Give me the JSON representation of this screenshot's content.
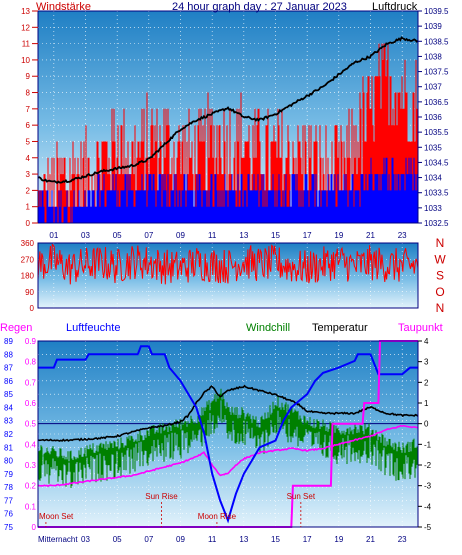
{
  "colors": {
    "wind": "#ff0000",
    "gust": "#0000ff",
    "pressure": "#000000",
    "direction": "#ff0000",
    "humidity": "#0000ff",
    "windchill": "#008000",
    "temperature": "#000000",
    "dewpoint": "#ff00ff",
    "rain": "#ff00ff",
    "annotation": "#cc0000",
    "left_axis": "#cc0000",
    "right_axis": "#000080"
  },
  "chart_data": [
    {
      "type": "line",
      "title": "24 hour graph day : 27 Januar 2023",
      "left_label": "Windstärke",
      "right_label": "Luftdruck",
      "x_ticks": [
        "01",
        "03",
        "05",
        "07",
        "09",
        "11",
        "13",
        "15",
        "17",
        "19",
        "21",
        "23"
      ],
      "y_left_ticks": [
        "0",
        "1",
        "2",
        "3",
        "4",
        "5",
        "6",
        "7",
        "8",
        "9",
        "10",
        "11",
        "12",
        "13"
      ],
      "y_left_range": [
        0,
        13
      ],
      "y_right_ticks": [
        "1032.5",
        "1033",
        "1033.5",
        "1034",
        "1034.5",
        "1035",
        "1035.5",
        "1036",
        "1036.5",
        "1037",
        "1037.5",
        "1038",
        "1038.5",
        "1039",
        "1039.5"
      ],
      "y_right_range": [
        1032.5,
        1039.5
      ],
      "x_range_hours": [
        0,
        24
      ],
      "series": [
        {
          "key": "pressure",
          "x": [
            0,
            0.5,
            1,
            2,
            3,
            4,
            5,
            6,
            7,
            8,
            9,
            10,
            11,
            12,
            13,
            14,
            15,
            16,
            17,
            18,
            19,
            20,
            21,
            22,
            23,
            24
          ],
          "values": [
            1034.0,
            1033.9,
            1033.85,
            1033.9,
            1034.05,
            1034.2,
            1034.3,
            1034.4,
            1034.6,
            1035.1,
            1035.6,
            1035.9,
            1036.1,
            1036.3,
            1036.0,
            1035.9,
            1036.1,
            1036.4,
            1036.7,
            1037.0,
            1037.4,
            1037.8,
            1038.0,
            1038.4,
            1038.6,
            1038.5
          ]
        },
        {
          "key": "wind",
          "x": [
            0,
            1,
            2,
            3,
            4,
            5,
            6,
            7,
            8,
            9,
            10,
            11,
            12,
            13,
            14,
            15,
            16,
            17,
            18,
            19,
            20,
            21,
            22,
            23,
            24
          ],
          "values": [
            1,
            2,
            3,
            3,
            4,
            5,
            4,
            5,
            5,
            4,
            4,
            5,
            5,
            5,
            4,
            4,
            4,
            4,
            3,
            3,
            5,
            7,
            9,
            8,
            7
          ]
        },
        {
          "key": "gust",
          "x": [
            0,
            1,
            2,
            3,
            4,
            5,
            6,
            7,
            8,
            9,
            10,
            11,
            12,
            13,
            14,
            15,
            16,
            17,
            18,
            19,
            20,
            21,
            22,
            23,
            24
          ],
          "values": [
            1,
            1,
            1,
            1,
            2,
            2,
            2,
            2,
            2,
            2,
            2,
            2,
            2,
            2,
            2,
            2,
            2,
            2,
            2,
            2,
            2,
            3,
            3,
            3,
            3
          ]
        }
      ]
    },
    {
      "type": "scatter",
      "y_left_ticks": [
        "360",
        "270",
        "180",
        "90",
        "0"
      ],
      "y_left_range": [
        0,
        360
      ],
      "direction_labels": [
        "N",
        "W",
        "S",
        "O",
        "N"
      ],
      "x_range_hours": [
        0,
        24
      ],
      "series": [
        {
          "key": "direction",
          "x": [
            0,
            1,
            2,
            3,
            4,
            5,
            6,
            7,
            8,
            9,
            10,
            11,
            12,
            13,
            14,
            15,
            16,
            17,
            18,
            19,
            20,
            21,
            22,
            23,
            24
          ],
          "values": [
            240,
            260,
            220,
            240,
            250,
            230,
            260,
            250,
            230,
            220,
            250,
            240,
            230,
            260,
            240,
            250,
            230,
            220,
            240,
            260,
            230,
            250,
            240,
            230,
            240
          ]
        }
      ]
    },
    {
      "type": "line",
      "legend": [
        "Regen",
        "Luftfeuchte",
        "Windchill",
        "Temperatur",
        "Taupunkt"
      ],
      "y_humidity_ticks": [
        "75",
        "76",
        "77",
        "78",
        "79",
        "80",
        "81",
        "82",
        "83",
        "84",
        "85",
        "86",
        "87",
        "88",
        "89"
      ],
      "y_humidity_range": [
        75,
        89
      ],
      "y_rain_ticks": [
        "0",
        "0.1",
        "0.2",
        "0.3",
        "0.4",
        "0.5",
        "0.6",
        "0.7",
        "0.8",
        "0.9"
      ],
      "y_rain_range": [
        0,
        0.9
      ],
      "y_temp_ticks": [
        "4",
        "3",
        "2",
        "1",
        "0",
        "-1",
        "-2",
        "-3",
        "-4",
        "-5"
      ],
      "y_temp_range": [
        -5,
        4
      ],
      "x_ticks": [
        "Mitternacht",
        "03",
        "05",
        "07",
        "09",
        "11",
        "13",
        "15",
        "17",
        "19",
        "21",
        "23"
      ],
      "x_range_hours": [
        0,
        24
      ],
      "series": [
        {
          "key": "humidity",
          "x": [
            0,
            1,
            1.2,
            3,
            3.2,
            6.3,
            6.5,
            7,
            7.2,
            8,
            8.3,
            9,
            10,
            10.5,
            11,
            11.5,
            12,
            12.5,
            13,
            13.5,
            14,
            15,
            15.5,
            16,
            17,
            17.5,
            18,
            19,
            20,
            20.2,
            21,
            21.5,
            22,
            22.5,
            23,
            23.5,
            24
          ],
          "values": [
            87,
            87,
            87.6,
            87.6,
            88,
            88,
            88.6,
            88.6,
            88,
            88,
            87,
            86,
            84,
            82,
            79,
            77,
            75.5,
            77.5,
            79,
            80,
            81,
            81.5,
            83,
            84,
            85,
            86,
            86.6,
            87,
            87.5,
            88,
            88,
            86.5,
            86.5,
            86.5,
            86.5,
            87,
            87
          ]
        },
        {
          "key": "temperature",
          "x": [
            0,
            2,
            4,
            5,
            6,
            7,
            8,
            9,
            9.5,
            10,
            10.5,
            11,
            11.5,
            12,
            13,
            14,
            15,
            16,
            16.5,
            17,
            18,
            19,
            20,
            21,
            22,
            23,
            24
          ],
          "values": [
            -0.8,
            -0.8,
            -0.7,
            -0.6,
            -0.4,
            -0.2,
            -0.1,
            0.1,
            0.4,
            1.0,
            1.5,
            1.8,
            1.3,
            1.6,
            1.8,
            1.6,
            1.4,
            1.1,
            0.9,
            0.6,
            0.5,
            0.5,
            0.5,
            0.8,
            0.5,
            0.4,
            0.4
          ]
        },
        {
          "key": "windchill",
          "x": [
            0,
            1,
            2,
            3,
            4,
            5,
            6,
            7,
            8,
            9,
            10,
            11,
            11.5,
            12,
            13,
            14,
            15,
            16,
            17,
            18,
            19,
            20,
            21,
            22,
            23,
            24
          ],
          "values": [
            -1.5,
            -1.7,
            -1.9,
            -1.6,
            -1.4,
            -1.3,
            -1.0,
            -0.7,
            -0.5,
            -0.3,
            0.0,
            0.8,
            1.2,
            0.3,
            0.2,
            -0.3,
            0.8,
            0.3,
            -0.2,
            -0.4,
            -0.6,
            -0.5,
            -0.6,
            -1.2,
            -1.5,
            -1.2
          ]
        },
        {
          "key": "dewpoint",
          "x": [
            0,
            1,
            2,
            3,
            4,
            5,
            6,
            7,
            8,
            9,
            10,
            10.5,
            11,
            11.5,
            12,
            12.5,
            13,
            14,
            15,
            16,
            17,
            18,
            19,
            20,
            21,
            22,
            23,
            24
          ],
          "values": [
            -3.0,
            -3.0,
            -2.9,
            -2.8,
            -2.7,
            -2.6,
            -2.5,
            -2.3,
            -2.1,
            -1.9,
            -1.6,
            -1.4,
            -2.0,
            -2.5,
            -2.4,
            -2.0,
            -1.7,
            -1.4,
            -1.3,
            -1.2,
            -1.3,
            -1.2,
            -1.0,
            -0.8,
            -0.6,
            -0.3,
            -0.1,
            -0.2
          ]
        },
        {
          "key": "rain",
          "x": [
            0,
            16,
            16.1,
            18.5,
            18.6,
            20.5,
            20.6,
            21.5,
            21.6,
            24
          ],
          "values": [
            0,
            0,
            0.2,
            0.2,
            0.5,
            0.5,
            0.6,
            0.6,
            0.9,
            0.9
          ]
        }
      ],
      "annotations": [
        {
          "label": "Moon Set",
          "hour": 0.5,
          "level": "low"
        },
        {
          "label": "Sun Rise",
          "hour": 7.8,
          "level": "high"
        },
        {
          "label": "Moon Rise",
          "hour": 11.3,
          "level": "low"
        },
        {
          "label": "Sun Set",
          "hour": 16.6,
          "level": "high"
        }
      ]
    }
  ]
}
